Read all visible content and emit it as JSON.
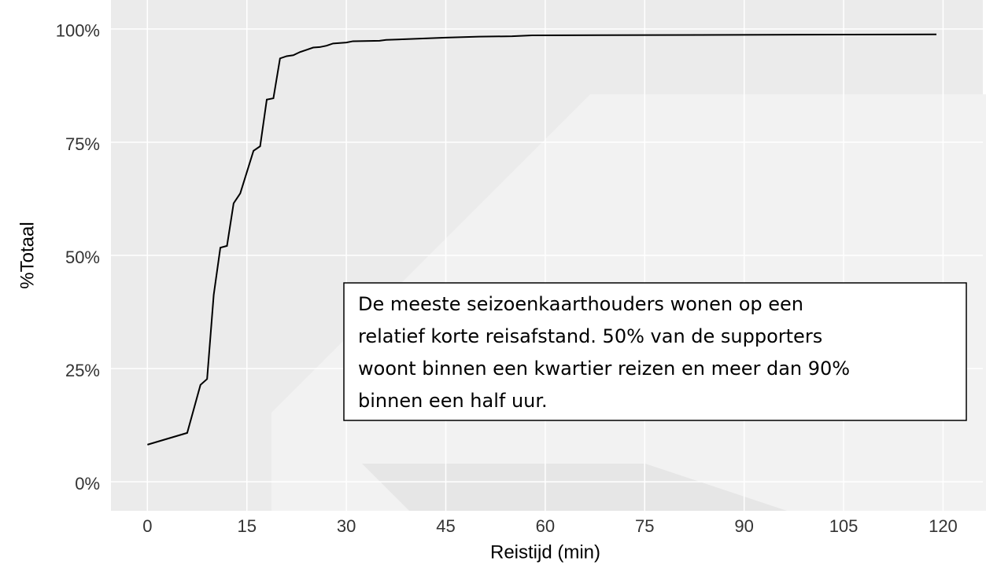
{
  "chart_data": {
    "type": "line",
    "x_label": "Reistijd (min)",
    "y_label": "%Totaal",
    "annotation": [
      "De meeste seizoenkaarthouders wonen op een",
      "relatief korte reisafstand. 50% van de supporters",
      "woont binnen een kwartier reizen en meer dan 90%",
      "binnen een half uur."
    ],
    "x": [
      0,
      6,
      7,
      8,
      9,
      10,
      11,
      12,
      13,
      14,
      16,
      17,
      18,
      19,
      20,
      21,
      22,
      23,
      24,
      25,
      26,
      27,
      28,
      30,
      31,
      35,
      36,
      40,
      45,
      50,
      55,
      58,
      119
    ],
    "series": [
      {
        "color": "#000000",
        "values": [
          8.2,
          10.8,
          16.1,
          21.4,
          22.7,
          41.3,
          51.7,
          52.1,
          61.5,
          63.7,
          73.1,
          74.1,
          84.4,
          84.7,
          93.5,
          94.0,
          94.2,
          94.9,
          95.4,
          95.9,
          96.0,
          96.3,
          96.8,
          97.0,
          97.3,
          97.4,
          97.6,
          97.8,
          98.1,
          98.3,
          98.4,
          98.6,
          98.8
        ]
      }
    ],
    "xlim": [
      -5.5,
      126
    ],
    "ylim": [
      -6.4,
      106.4
    ],
    "xticks": [
      0,
      15,
      30,
      45,
      60,
      75,
      90,
      105,
      120
    ],
    "yticks": [
      {
        "value": 0,
        "label": "0%"
      },
      {
        "value": 25,
        "label": "25%"
      },
      {
        "value": 50,
        "label": "50%"
      },
      {
        "value": 75,
        "label": "75%"
      },
      {
        "value": 100,
        "label": "100%"
      }
    ],
    "grid": true
  }
}
